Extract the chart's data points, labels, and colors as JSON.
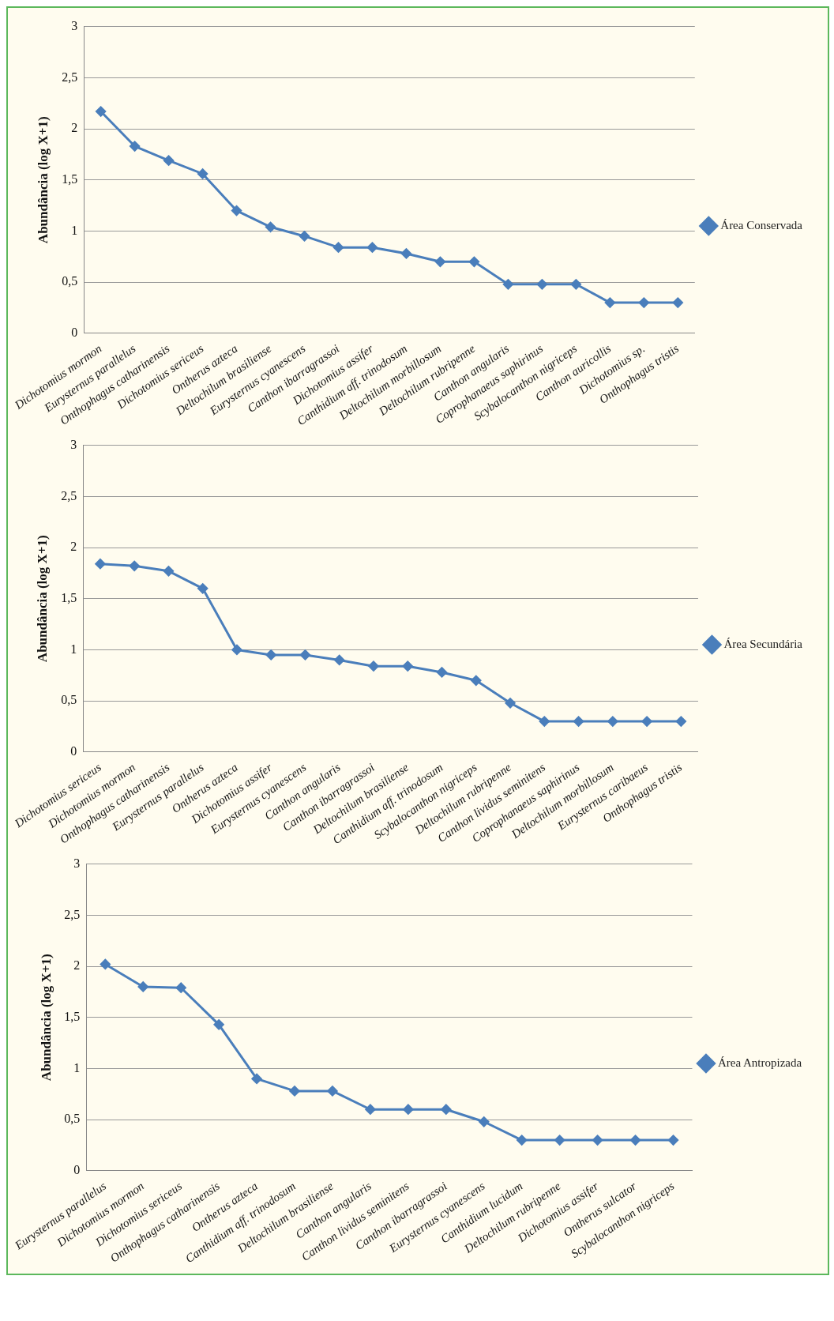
{
  "chart_data": [
    {
      "type": "line",
      "ylabel": "Abundância (log X+1)",
      "categories": [
        "Dichotomius mormon",
        "Eurysternus parallelus",
        "Onthophagus catharinensis",
        "Dichotomius sericeus",
        "Ontherus azteca",
        "Deltochilum brasiliense",
        "Eurysternus cyanescens",
        "Canthon ibarragrassoi",
        "Dichotomius assifer",
        "Canthidium aff. trinodosum",
        "Deltochilum morbillosum",
        "Deltochilum rubripenne",
        "Canthon angularis",
        "Coprophanaeus saphirinus",
        "Scybalocanthon nigriceps",
        "Canthon auricollis",
        "Dichotomius sp.",
        "Onthophagus tristis"
      ],
      "series": [
        {
          "name": "Área Conservada",
          "color": "#4a7ebb",
          "values": [
            2.17,
            1.83,
            1.69,
            1.56,
            1.2,
            1.04,
            0.95,
            0.84,
            0.84,
            0.78,
            0.7,
            0.7,
            0.48,
            0.48,
            0.48,
            0.3,
            0.3,
            0.3
          ]
        }
      ],
      "ylim": [
        0,
        3
      ],
      "yticks": [
        0,
        {
          "value": 0.5,
          "label": "0,5"
        },
        1,
        {
          "value": 1.5,
          "label": "1,5"
        },
        2,
        {
          "value": 2.5,
          "label": "2,5"
        },
        3
      ],
      "grid": "y",
      "legend": "right",
      "marker": "diamond",
      "line_style": "solid"
    },
    {
      "type": "line",
      "ylabel": "Abundância (log X+1)",
      "categories": [
        "Dichotomius sericeus",
        "Dichotomius mormon",
        "Onthophagus catharinensis",
        "Eurysternus parallelus",
        "Ontherus azteca",
        "Dichotomius assifer",
        "Eurysternus cyanescens",
        "Canthon angularis",
        "Canthon ibarragrassoi",
        "Deltochilum brasiliense",
        "Canthidium aff. trinodosum",
        "Scybalocanthon nigriceps",
        "Deltochilum rubripenne",
        "Canthon lividus seminitens",
        "Coprophanaeus saphirinus",
        "Deltochilum morbillosum",
        "Eurysternus caribaeus",
        "Onthophagus tristis"
      ],
      "series": [
        {
          "name": "Área Secundária",
          "color": "#4a7ebb",
          "values": [
            1.84,
            1.82,
            1.77,
            1.6,
            1.0,
            0.95,
            0.95,
            0.9,
            0.84,
            0.84,
            0.78,
            0.7,
            0.48,
            0.3,
            0.3,
            0.3,
            0.3,
            0.3
          ]
        }
      ],
      "ylim": [
        0,
        3
      ],
      "yticks": [
        0,
        {
          "value": 0.5,
          "label": "0,5"
        },
        1,
        {
          "value": 1.5,
          "label": "1,5"
        },
        2,
        {
          "value": 2.5,
          "label": "2,5"
        },
        3
      ],
      "grid": "y",
      "legend": "right",
      "marker": "diamond",
      "line_style": "solid"
    },
    {
      "type": "line",
      "ylabel": "Abundância (log X+1)",
      "categories": [
        "Eurysternus parallelus",
        "Dichotomius mormon",
        "Dichotomius sericeus",
        "Onthophagus catharinensis",
        "Ontherus azteca",
        "Canthidium aff. trinodosum",
        "Deltochilum brasiliense",
        "Canthon angularis",
        "Canthon lividus seminitens",
        "Canthon ibarragrassoi",
        "Eurysternus cyanescens",
        "Canthidium lucidum",
        "Deltochilum rubripenne",
        "Dichotomius assifer",
        "Ontherus sulcator",
        "Scybalocanthon nigriceps"
      ],
      "series": [
        {
          "name": "Área Antropizada",
          "color": "#4a7ebb",
          "values": [
            2.02,
            1.8,
            1.79,
            1.43,
            0.9,
            0.78,
            0.78,
            0.6,
            0.6,
            0.6,
            0.48,
            0.3,
            0.3,
            0.3,
            0.3,
            0.3
          ]
        }
      ],
      "ylim": [
        0,
        3
      ],
      "yticks": [
        0,
        {
          "value": 0.5,
          "label": "0,5"
        },
        1,
        {
          "value": 1.5,
          "label": "1,5"
        },
        2,
        {
          "value": 2.5,
          "label": "2,5"
        },
        3
      ],
      "grid": "y",
      "legend": "right",
      "marker": "diamond",
      "line_style": "solid"
    }
  ]
}
